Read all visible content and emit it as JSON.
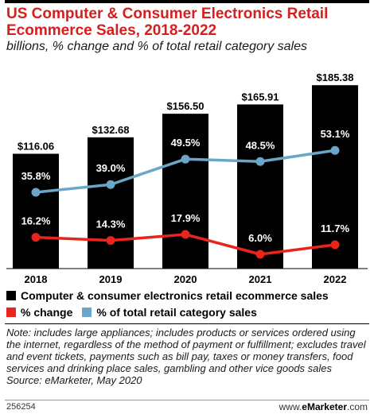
{
  "chart_data": {
    "type": "bar",
    "title": "US Computer & Consumer Electronics Retail Ecommerce Sales, 2018-2022",
    "subtitle": "billions, % change and % of total retail category sales",
    "categories": [
      "2018",
      "2019",
      "2020",
      "2021",
      "2022"
    ],
    "series": [
      {
        "name": "Computer & consumer electronics retail ecommerce sales",
        "kind": "bar",
        "values": [
          116.06,
          132.68,
          156.5,
          165.91,
          185.38
        ],
        "labels": [
          "$116.06",
          "$132.68",
          "$156.50",
          "$165.91",
          "$185.38"
        ]
      },
      {
        "name": "% change",
        "kind": "line",
        "values": [
          16.2,
          14.3,
          17.9,
          6.0,
          11.7
        ],
        "labels": [
          "16.2%",
          "14.3%",
          "17.9%",
          "6.0%",
          "11.7%"
        ]
      },
      {
        "name": "% of total retail category sales",
        "kind": "line",
        "values": [
          35.8,
          39.0,
          49.5,
          48.5,
          53.1
        ],
        "labels": [
          "35.8%",
          "39.0%",
          "49.5%",
          "48.5%",
          "53.1%"
        ]
      }
    ],
    "colors": {
      "bar": "#000000",
      "change": "#e8241c",
      "share": "#6aa6c8",
      "title": "#d71e1e"
    },
    "legend_position": "bottom",
    "grid": false
  },
  "note": "Note: includes large appliances; includes products or services ordered using the internet, regardless of the method of payment or fulfillment; excludes travel and event tickets, payments such as bill pay, taxes or money transfers, food services and drinking place sales, gambling and other vice goods sales",
  "source": "Source: eMarketer, May 2020",
  "footer": {
    "id": "256254",
    "brand_prefix": "www.",
    "brand_name": "eMarketer",
    "brand_suffix": ".com"
  }
}
